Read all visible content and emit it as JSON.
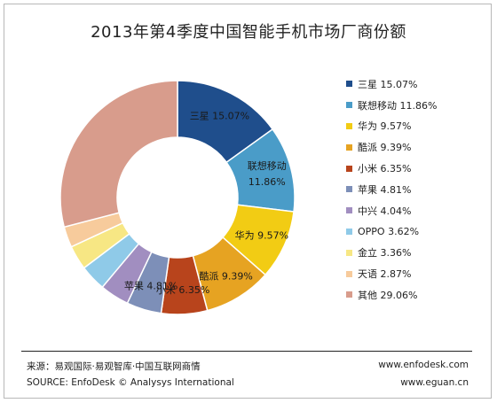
{
  "chart_data": {
    "type": "pie",
    "title": "2013年第4季度中国智能手机市场厂商份额",
    "unit": "%",
    "categories": [
      "三星",
      "联想移动",
      "华为",
      "酷派",
      "小米",
      "苹果",
      "中兴",
      "OPPO",
      "金立",
      "天语",
      "其他"
    ],
    "values": [
      15.07,
      11.86,
      9.57,
      9.39,
      6.35,
      4.81,
      4.04,
      3.62,
      3.36,
      2.87,
      29.06
    ],
    "value_labels": [
      "15.07%",
      "11.86%",
      "9.57%",
      "9.39%",
      "6.35%",
      "4.81%",
      "4.04%",
      "3.62%",
      "3.36%",
      "2.87%",
      "29.06%"
    ],
    "colors": [
      "#1f4e8c",
      "#4a9cc8",
      "#f2cc14",
      "#e6a322",
      "#b8441c",
      "#7d8fb8",
      "#a18ec0",
      "#8fcae8",
      "#f7e784",
      "#f7cb9c",
      "#d89c8c"
    ],
    "slice_labels": [
      {
        "name": "三星",
        "value": "15.07%"
      },
      {
        "name": "联想移动",
        "value": "11.86%"
      },
      {
        "name": "华为",
        "value": "9.57%"
      },
      {
        "name": "酷派",
        "value": "9.39%"
      },
      {
        "name": "小米",
        "value": "6.35%"
      },
      {
        "name": "苹果",
        "value": "4.81%"
      }
    ],
    "legend_position": "right",
    "donut": true
  },
  "footer": {
    "source_cn": "来源：易观国际·易观智库·中国互联网商情",
    "source_en": "SOURCE: EnfoDesk © Analysys International",
    "url_1": "www.enfodesk.com",
    "url_2": "www.eguan.cn"
  }
}
